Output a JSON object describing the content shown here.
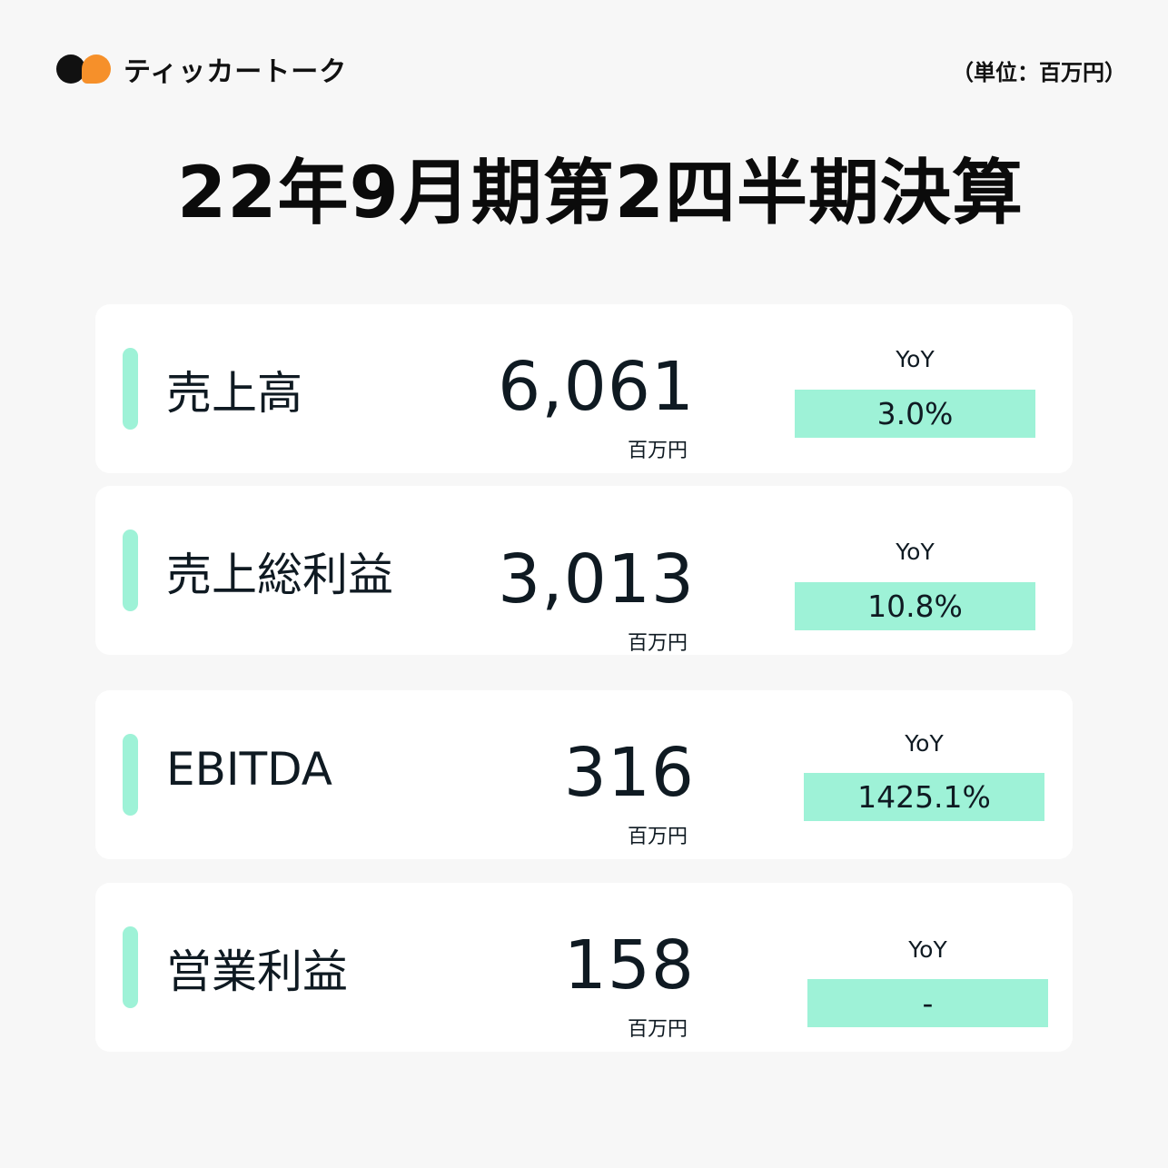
{
  "brand": {
    "name": "ティッカートーク",
    "logo_icon": "speech-bubble-dots-icon",
    "colors": {
      "dark": "#111111",
      "orange": "#f6902a"
    }
  },
  "unit_note": "（単位：百万円）",
  "title": "22年9月期第2四半期決算",
  "accent_color": "#9ef2d7",
  "metrics": [
    {
      "label": "売上高",
      "value": "6,061",
      "unit": "百万円",
      "yoy_label": "YoY",
      "yoy_value": "3.0%"
    },
    {
      "label": "売上総利益",
      "value": "3,013",
      "unit": "百万円",
      "yoy_label": "YoY",
      "yoy_value": "10.8%"
    },
    {
      "label": "EBITDA",
      "value": "316",
      "unit": "百万円",
      "yoy_label": "YoY",
      "yoy_value": "1425.1%"
    },
    {
      "label": "営業利益",
      "value": "158",
      "unit": "百万円",
      "yoy_label": "YoY",
      "yoy_value": "-"
    }
  ]
}
